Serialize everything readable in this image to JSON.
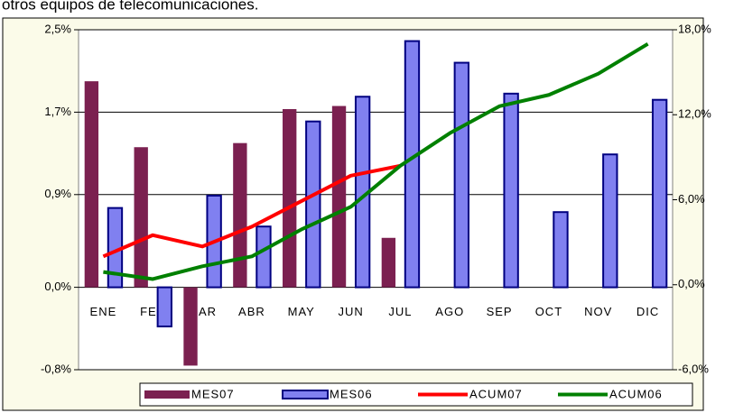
{
  "caption": "otros equipos de telecomunicaciones.",
  "chart_data": {
    "type": "bar-line",
    "categories": [
      "ENE",
      "FEB",
      "MAR",
      "ABR",
      "MAY",
      "JUN",
      "JUL",
      "AGO",
      "SEP",
      "OCT",
      "NOV",
      "DIC"
    ],
    "series": [
      {
        "name": "MES07",
        "kind": "bar",
        "color": "#7b2050",
        "values": [
          2.0,
          1.36,
          -0.76,
          1.4,
          1.73,
          1.76,
          0.48,
          null,
          null,
          null,
          null,
          null
        ]
      },
      {
        "name": "MES06",
        "kind": "bar",
        "color": "#8080f0",
        "values": [
          0.77,
          -0.38,
          0.89,
          0.59,
          1.61,
          1.85,
          2.39,
          2.18,
          1.88,
          0.73,
          1.29,
          1.82
        ]
      },
      {
        "name": "ACUM07",
        "kind": "line",
        "axis": "y2",
        "color": "#ff0000",
        "values": [
          2.0,
          3.5,
          2.7,
          4.1,
          5.9,
          7.7,
          8.4,
          null,
          null,
          null,
          null,
          null
        ]
      },
      {
        "name": "ACUM06",
        "kind": "line",
        "axis": "y2",
        "color": "#008000",
        "values": [
          0.9,
          0.4,
          1.3,
          2.0,
          3.9,
          5.5,
          8.4,
          10.7,
          12.6,
          13.4,
          14.9,
          17.0
        ]
      }
    ],
    "ylim": [
      -0.8,
      2.5
    ],
    "yticks": [
      {
        "value": -0.8,
        "label": "-0,8%"
      },
      {
        "value": 0,
        "label": "0,0%"
      },
      {
        "value": 0.9,
        "label": "0,9%"
      },
      {
        "value": 1.7,
        "label": "1,7%"
      },
      {
        "value": 2.5,
        "label": "2,5%"
      }
    ],
    "y2lim": [
      -6,
      18
    ],
    "y2ticks": [
      {
        "value": -6,
        "label": "-6,0%"
      },
      {
        "value": 0,
        "label": "0,0%"
      },
      {
        "value": 6,
        "label": "6,0%"
      },
      {
        "value": 12,
        "label": "12,0%"
      },
      {
        "value": 18,
        "label": "18,0%"
      }
    ],
    "grid": true
  }
}
